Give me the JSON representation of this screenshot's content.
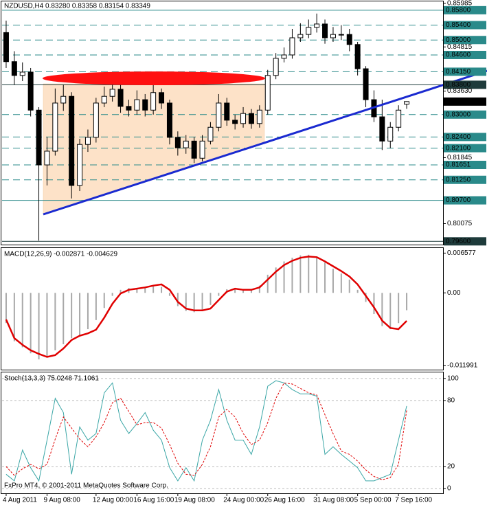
{
  "chart_data": [
    {
      "type": "candlestick",
      "title": "NZDUSD,H4  0.83280 0.83358 0.83154 0.83349",
      "categories": [
        "4 Aug 2011",
        null,
        null,
        null,
        null,
        "9 Aug 08:00",
        null,
        null,
        null,
        null,
        null,
        "12 Aug 00:00",
        null,
        null,
        null,
        null,
        "16 Aug 16:00",
        null,
        null,
        null,
        null,
        "19 Aug 08:00",
        null,
        null,
        null,
        null,
        null,
        "24 Aug 00:00",
        null,
        null,
        null,
        null,
        "26 Aug 16:00",
        null,
        null,
        null,
        null,
        null,
        "31 Aug 08:00",
        null,
        null,
        null,
        null,
        "5 Sep 00:00",
        null,
        null,
        null,
        null,
        "7 Sep 16:00",
        null
      ],
      "open": [
        0.852,
        0.8442,
        0.8405,
        0.8414,
        0.8312,
        0.8165,
        0.8202,
        0.8331,
        0.8349,
        0.811,
        0.822,
        0.8239,
        0.8331,
        0.8349,
        0.8368,
        0.8322,
        0.8312,
        0.834,
        0.8312,
        0.8359,
        0.8331,
        0.8239,
        0.8211,
        0.8229,
        0.8183,
        0.8229,
        0.8266,
        0.8331,
        0.8285,
        0.8276,
        0.8303,
        0.8276,
        0.8312,
        0.8405,
        0.8451,
        0.846,
        0.8506,
        0.8515,
        0.8534,
        0.8543,
        0.8506,
        0.8515,
        0.8515,
        0.8488,
        0.8423,
        0.834,
        0.8294,
        0.8229,
        0.8266,
        0.8328
      ],
      "high": [
        0.8552,
        0.847,
        0.844,
        0.8425,
        0.832,
        0.824,
        0.837,
        0.838,
        0.836,
        0.8235,
        0.826,
        0.8345,
        0.8375,
        0.839,
        0.8385,
        0.834,
        0.8365,
        0.8355,
        0.8385,
        0.837,
        0.834,
        0.8255,
        0.8245,
        0.824,
        0.8245,
        0.828,
        0.8355,
        0.8345,
        0.83,
        0.832,
        0.8315,
        0.8325,
        0.842,
        0.8465,
        0.848,
        0.853,
        0.8545,
        0.8555,
        0.8571,
        0.8555,
        0.8535,
        0.854,
        0.853,
        0.8495,
        0.843,
        0.8365,
        0.834,
        0.828,
        0.8325,
        0.83358
      ],
      "low": [
        0.8425,
        0.838,
        0.839,
        0.8295,
        0.7962,
        0.811,
        0.819,
        0.831,
        0.8075,
        0.8095,
        0.82,
        0.8225,
        0.832,
        0.8335,
        0.8305,
        0.8295,
        0.83,
        0.8295,
        0.83,
        0.8315,
        0.822,
        0.819,
        0.8195,
        0.817,
        0.8175,
        0.822,
        0.8255,
        0.827,
        0.826,
        0.8265,
        0.8262,
        0.8265,
        0.83,
        0.8395,
        0.844,
        0.845,
        0.8495,
        0.8505,
        0.852,
        0.849,
        0.8495,
        0.85,
        0.847,
        0.8405,
        0.832,
        0.828,
        0.8205,
        0.821,
        0.8255,
        0.83154
      ],
      "close": [
        0.8442,
        0.8405,
        0.8414,
        0.8312,
        0.8165,
        0.8202,
        0.8331,
        0.8349,
        0.811,
        0.822,
        0.8239,
        0.8331,
        0.8349,
        0.8368,
        0.8322,
        0.8312,
        0.834,
        0.8312,
        0.8359,
        0.8331,
        0.8239,
        0.8211,
        0.8229,
        0.8183,
        0.8229,
        0.8266,
        0.8331,
        0.8285,
        0.8276,
        0.8303,
        0.8276,
        0.8312,
        0.8405,
        0.8451,
        0.846,
        0.8506,
        0.8515,
        0.8534,
        0.8543,
        0.8506,
        0.8515,
        0.8515,
        0.8488,
        0.8423,
        0.834,
        0.8294,
        0.8229,
        0.8266,
        0.8312,
        0.83349
      ],
      "ylim": [
        0.7955,
        0.86
      ],
      "yticks": [
        0.85985,
        0.84815,
        {
          "value": 0.8363,
          "label": "0.83630"
        },
        0.81845,
        0.80075
      ],
      "levels": [
        {
          "value": 0.858,
          "label": "0.85800",
          "style": "solid",
          "color": "#2a8a8a"
        },
        {
          "value": 0.854,
          "label": "0.85400",
          "style": "dashed",
          "color": "#2a8a8a"
        },
        {
          "value": 0.85,
          "label": "0.85000",
          "style": "dashed",
          "color": "#2a8a8a"
        },
        {
          "value": 0.846,
          "label": "0.84600",
          "style": "dashed",
          "color": "#2a8a8a"
        },
        {
          "value": 0.8415,
          "label": "0.84150",
          "style": "dashed",
          "color": "#2a8a8a"
        },
        {
          "value": 0.838,
          "label": "0.83800",
          "style": "solid",
          "color": "#1e3b3b"
        },
        {
          "value": 0.83,
          "label": "0.83000",
          "style": "dashed",
          "color": "#2a8a8a"
        },
        {
          "value": 0.824,
          "label": "0.82400",
          "style": "dashed",
          "color": "#2a8a8a"
        },
        {
          "value": 0.821,
          "label": "0.82100",
          "style": "dashed",
          "color": "#2a8a8a"
        },
        {
          "value": 0.81651,
          "label": "0.81651",
          "style": "dashed",
          "color": "#2a8a8a"
        },
        {
          "value": 0.8125,
          "label": "0.81250",
          "style": "dashed",
          "color": "#2a8a8a"
        },
        {
          "value": 0.807,
          "label": "0.80700",
          "style": "solid",
          "color": "#2a8a8a"
        },
        {
          "value": 0.796,
          "label": "0.79600",
          "style": "solid",
          "color": "#1e3b3b"
        }
      ],
      "last_price": {
        "value": 0.83349,
        "label": "0.83349"
      },
      "footer": "FxPro MT4, © 2001-2011 MetaQuotes Software Corp."
    },
    {
      "type": "macd",
      "title": "MACD(12,26,9) -0.002871 -0.004629",
      "histogram": {
        "color": "#a8a8a8",
        "values": [
          -0.005,
          -0.008,
          -0.009,
          -0.01,
          -0.011,
          -0.0105,
          -0.0095,
          -0.0085,
          -0.0075,
          -0.007,
          -0.006,
          -0.0045,
          -0.0025,
          -0.0005,
          0.0005,
          0.0008,
          0.0008,
          0.001,
          0.0012,
          0.001,
          -0.0005,
          -0.0022,
          -0.003,
          -0.0032,
          -0.0028,
          -0.002,
          -0.0005,
          0.0006,
          0.0008,
          0.0005,
          0.0006,
          0.0012,
          0.003,
          0.0042,
          0.0052,
          0.0058,
          0.0062,
          0.0063,
          0.006,
          0.005,
          0.004,
          0.0032,
          0.0022,
          0.0005,
          -0.0015,
          -0.0035,
          -0.0055,
          -0.006,
          -0.005,
          -0.002871
        ]
      },
      "signal": {
        "color": "#e00000",
        "values": [
          -0.0044,
          -0.0075,
          -0.0086,
          -0.0095,
          -0.0101,
          -0.0106,
          -0.0103,
          -0.0092,
          -0.0078,
          -0.0071,
          -0.0067,
          -0.0061,
          -0.0041,
          -0.0018,
          -0.0001,
          0.0005,
          0.0007,
          0.0009,
          0.0012,
          0.0014,
          0.0005,
          -0.0015,
          -0.0026,
          -0.0029,
          -0.0029,
          -0.0026,
          -0.0012,
          0.0002,
          0.0007,
          0.0005,
          0.0005,
          0.0009,
          0.0022,
          0.0035,
          0.0046,
          0.0053,
          0.0058,
          0.006,
          0.0059,
          0.0052,
          0.0044,
          0.0036,
          0.0027,
          0.0014,
          -0.0005,
          -0.0024,
          -0.0046,
          -0.0058,
          -0.006,
          -0.004629
        ]
      },
      "ylim": [
        -0.0127,
        0.0073
      ],
      "yticks": [
        0.006577,
        {
          "value": 0,
          "label": "0.00"
        },
        -0.011991
      ]
    },
    {
      "type": "stochastic",
      "title": "Stoch(13,3,3) 75.0248 71.1061",
      "series": [
        {
          "color": "#3aa6a6",
          "style": "solid",
          "values": [
            13,
            7,
            35,
            19,
            7,
            44,
            82,
            69,
            13,
            56,
            44,
            50,
            87,
            96,
            62,
            50,
            59,
            69,
            53,
            44,
            19,
            7,
            19,
            7,
            44,
            62,
            90,
            62,
            44,
            44,
            31,
            56,
            93,
            98,
            96,
            90,
            86,
            86,
            84,
            31,
            38,
            31,
            25,
            19,
            7,
            7,
            10,
            13,
            44,
            75.0248
          ]
        },
        {
          "color": "#e00000",
          "style": "dashed",
          "values": [
            20,
            12,
            18,
            22,
            18,
            22,
            45,
            65,
            55,
            45,
            38,
            47,
            60,
            78,
            82,
            70,
            58,
            60,
            60,
            55,
            40,
            23,
            13,
            12,
            22,
            38,
            65,
            72,
            65,
            50,
            40,
            44,
            60,
            82,
            96,
            95,
            91,
            87,
            85,
            67,
            50,
            34,
            31,
            25,
            17,
            11,
            8,
            10,
            22,
            71.1061
          ]
        }
      ],
      "ylim": [
        -4.3,
        104.9
      ],
      "yticks": [
        100,
        80,
        20,
        0
      ]
    }
  ]
}
